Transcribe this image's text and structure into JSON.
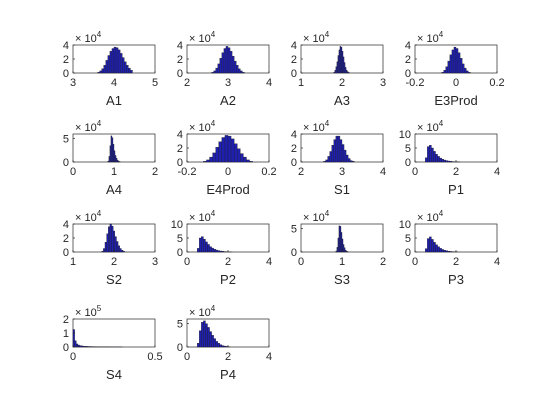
{
  "figure": {
    "background": "#ffffff",
    "bar_color": "#1f1fb0",
    "edge_color": "#1f1f1f"
  },
  "chart_data": [
    {
      "type": "bar",
      "xlabel": "A1",
      "xticks": [
        "3",
        "4",
        "5"
      ],
      "yticks": [
        "0",
        "2",
        "4"
      ],
      "exponent": "4",
      "xlim": [
        3,
        5
      ],
      "ylim": [
        0,
        4
      ],
      "bin_start": 3.6,
      "bin_width": 0.05,
      "values": [
        0.1,
        0.3,
        0.6,
        1.1,
        1.8,
        2.5,
        3.1,
        3.5,
        3.7,
        3.6,
        3.3,
        2.8,
        2.2,
        1.6,
        1.1,
        0.7,
        0.4
      ]
    },
    {
      "type": "bar",
      "xlabel": "A2",
      "xticks": [
        "2",
        "3",
        "4"
      ],
      "yticks": [
        "0",
        "2",
        "4"
      ],
      "exponent": "4",
      "xlim": [
        2,
        4
      ],
      "ylim": [
        0,
        4
      ],
      "bin_start": 2.6,
      "bin_width": 0.05,
      "values": [
        0.1,
        0.3,
        0.7,
        1.3,
        2.1,
        2.9,
        3.5,
        3.8,
        3.6,
        3.1,
        2.4,
        1.7,
        1.1,
        0.6,
        0.3,
        0.1
      ]
    },
    {
      "type": "bar",
      "xlabel": "A3",
      "xticks": [
        "1",
        "2",
        "3"
      ],
      "yticks": [
        "0",
        "2",
        "4"
      ],
      "exponent": "4",
      "xlim": [
        1,
        3
      ],
      "ylim": [
        0,
        4
      ],
      "bin_start": 1.8,
      "bin_width": 0.025,
      "values": [
        0.1,
        0.4,
        0.9,
        1.6,
        2.5,
        3.3,
        3.8,
        3.7,
        3.1,
        2.3,
        1.5,
        0.8,
        0.4,
        0.2,
        0.1
      ]
    },
    {
      "type": "bar",
      "xlabel": "E3Prod",
      "xticks": [
        "-0.2",
        "0",
        "0.2"
      ],
      "yticks": [
        "0",
        "2",
        "4"
      ],
      "exponent": "4",
      "xlim": [
        -0.2,
        0.2
      ],
      "ylim": [
        0,
        4
      ],
      "bin_start": -0.07,
      "bin_width": 0.01,
      "values": [
        0.1,
        0.4,
        0.9,
        1.7,
        2.6,
        3.3,
        3.7,
        3.5,
        2.9,
        2.1,
        1.3,
        0.7,
        0.3,
        0.1
      ]
    },
    {
      "type": "bar",
      "xlabel": "A4",
      "xticks": [
        "0",
        "1",
        "2"
      ],
      "yticks": [
        "0",
        "5"
      ],
      "exponent": "4",
      "xlim": [
        0,
        2
      ],
      "ylim": [
        0,
        6
      ],
      "bin_start": 0.85,
      "bin_width": 0.025,
      "values": [
        0.2,
        1.2,
        3.5,
        5.6,
        5.2,
        3.8,
        2.4,
        1.4,
        0.8,
        0.4,
        0.2,
        0.1
      ]
    },
    {
      "type": "bar",
      "xlabel": "E4Prod",
      "xticks": [
        "-0.2",
        "0",
        "0.2"
      ],
      "yticks": [
        "0",
        "2",
        "4"
      ],
      "exponent": "4",
      "xlim": [
        -0.2,
        0.2
      ],
      "ylim": [
        0,
        4
      ],
      "bin_start": -0.12,
      "bin_width": 0.015,
      "values": [
        0.1,
        0.3,
        0.7,
        1.3,
        2.1,
        2.9,
        3.5,
        3.8,
        3.7,
        3.3,
        2.6,
        1.9,
        1.2,
        0.7,
        0.3,
        0.1
      ]
    },
    {
      "type": "bar",
      "xlabel": "S1",
      "xticks": [
        "2",
        "3",
        "4"
      ],
      "yticks": [
        "0",
        "2",
        "4"
      ],
      "exponent": "4",
      "xlim": [
        2,
        4
      ],
      "ylim": [
        0,
        4
      ],
      "bin_start": 2.55,
      "bin_width": 0.05,
      "values": [
        0.1,
        0.3,
        0.8,
        1.5,
        2.4,
        3.2,
        3.7,
        3.7,
        3.2,
        2.5,
        1.7,
        1.0,
        0.5,
        0.2,
        0.1
      ]
    },
    {
      "type": "bar",
      "xlabel": "P1",
      "xticks": [
        "0",
        "2",
        "4"
      ],
      "yticks": [
        "0",
        "5",
        "10"
      ],
      "exponent": "4",
      "xlim": [
        0,
        4
      ],
      "ylim": [
        0,
        10
      ],
      "bin_start": 0.5,
      "bin_width": 0.1,
      "values": [
        1.5,
        5.5,
        6.0,
        5.0,
        3.8,
        2.8,
        2.0,
        1.4,
        1.0,
        0.7,
        0.5,
        0.35,
        0.25,
        0.15,
        0.1,
        0.07,
        0.05
      ]
    },
    {
      "type": "bar",
      "xlabel": "S2",
      "xticks": [
        "1",
        "2",
        "3"
      ],
      "yticks": [
        "0",
        "2",
        "4"
      ],
      "exponent": "4",
      "xlim": [
        1,
        3
      ],
      "ylim": [
        0,
        4
      ],
      "bin_start": 1.7,
      "bin_width": 0.04,
      "values": [
        0.1,
        0.5,
        1.4,
        2.6,
        3.6,
        4.0,
        3.7,
        3.0,
        2.2,
        1.5,
        0.9,
        0.5,
        0.25,
        0.1
      ]
    },
    {
      "type": "bar",
      "xlabel": "P2",
      "xticks": [
        "0",
        "2",
        "4"
      ],
      "yticks": [
        "0",
        "5",
        "10"
      ],
      "exponent": "4",
      "xlim": [
        0,
        4
      ],
      "ylim": [
        0,
        10
      ],
      "bin_start": 0.5,
      "bin_width": 0.1,
      "values": [
        1.3,
        5.0,
        5.5,
        4.6,
        3.6,
        2.7,
        1.9,
        1.4,
        1.0,
        0.7,
        0.5,
        0.35,
        0.25,
        0.15,
        0.1,
        0.07,
        0.05
      ]
    },
    {
      "type": "bar",
      "xlabel": "S3",
      "xticks": [
        "0",
        "1",
        "2"
      ],
      "yticks": [
        "0",
        "5"
      ],
      "exponent": "4",
      "xlim": [
        0,
        2
      ],
      "ylim": [
        0,
        6
      ],
      "bin_start": 0.85,
      "bin_width": 0.025,
      "values": [
        0.2,
        1.0,
        3.0,
        5.6,
        5.5,
        4.2,
        2.8,
        1.6,
        0.9,
        0.4,
        0.2,
        0.1
      ]
    },
    {
      "type": "bar",
      "xlabel": "P3",
      "xticks": [
        "0",
        "2",
        "4"
      ],
      "yticks": [
        "0",
        "5",
        "10"
      ],
      "exponent": "4",
      "xlim": [
        0,
        4
      ],
      "ylim": [
        0,
        10
      ],
      "bin_start": 0.5,
      "bin_width": 0.1,
      "values": [
        1.2,
        4.8,
        5.4,
        4.5,
        3.5,
        2.6,
        1.9,
        1.3,
        0.9,
        0.65,
        0.45,
        0.3,
        0.2,
        0.13,
        0.08,
        0.05
      ]
    },
    {
      "type": "bar",
      "xlabel": "S4",
      "xticks": [
        "0",
        "0.5"
      ],
      "yticks": [
        "0",
        "1",
        "2"
      ],
      "exponent": "5",
      "xlim": [
        0,
        0.5
      ],
      "ylim": [
        0,
        2
      ],
      "bin_start": 0.0,
      "bin_width": 0.01,
      "values": [
        1.25,
        0.45,
        0.22,
        0.14,
        0.1,
        0.08,
        0.06,
        0.05,
        0.045,
        0.04,
        0.035,
        0.03,
        0.03,
        0.025,
        0.025,
        0.02,
        0.02,
        0.02,
        0.018,
        0.016,
        0.015,
        0.014,
        0.013,
        0.012,
        0.011,
        0.01,
        0.01,
        0.009,
        0.009,
        0.008
      ]
    },
    {
      "type": "bar",
      "xlabel": "P4",
      "xticks": [
        "0",
        "2",
        "4"
      ],
      "yticks": [
        "0",
        "5"
      ],
      "exponent": "4",
      "xlim": [
        0,
        4
      ],
      "ylim": [
        0,
        6
      ],
      "bin_start": 0.5,
      "bin_width": 0.1,
      "values": [
        0.8,
        3.5,
        5.3,
        5.6,
        5.0,
        4.2,
        3.3,
        2.5,
        1.8,
        1.2,
        0.8,
        0.5,
        0.3,
        0.2,
        0.12,
        0.07
      ]
    }
  ]
}
